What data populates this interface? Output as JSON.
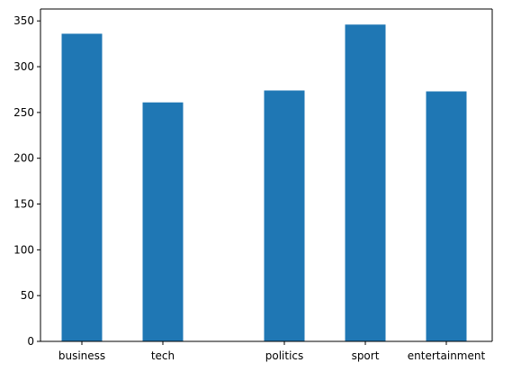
{
  "chart_data": {
    "type": "bar",
    "title": "",
    "xlabel": "",
    "ylabel": "",
    "categories": [
      "business",
      "tech",
      "politics",
      "sport",
      "entertainment"
    ],
    "x": [
      0,
      1,
      2.5,
      3.5,
      4.5
    ],
    "values": [
      336,
      261,
      274,
      346,
      273
    ],
    "ylim": [
      0,
      363
    ],
    "yticks": [
      0,
      50,
      100,
      150,
      200,
      250,
      300,
      350
    ],
    "grid": false,
    "bar_color": "#1f77b4"
  }
}
